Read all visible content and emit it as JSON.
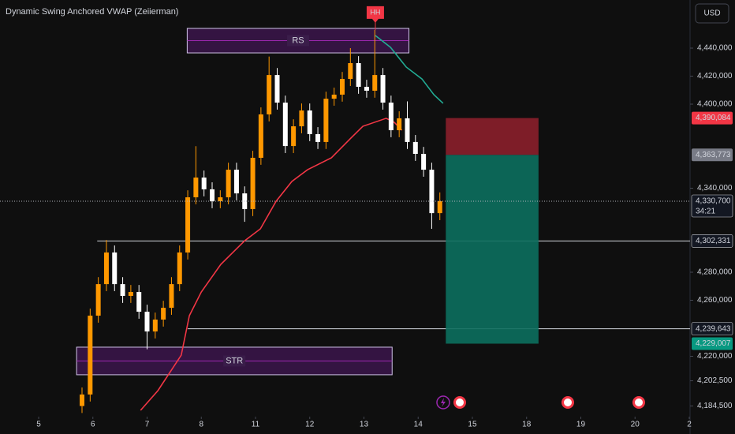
{
  "chart_data": {
    "type": "candlestick",
    "title": "Dynamic Swing Anchored VWAP (Zeiierman)",
    "currency": "USD",
    "up_color": "#ff9800",
    "down_color": "#ffffff",
    "x": [
      0.8,
      0.95,
      1.1,
      1.25,
      1.4,
      1.55,
      1.7,
      1.85,
      2.0,
      2.15,
      2.3,
      2.45,
      2.6,
      2.75,
      2.9,
      3.05,
      3.2,
      3.35,
      3.5,
      3.65,
      3.8,
      3.95,
      4.1,
      4.25,
      4.4,
      4.55,
      4.7,
      4.85,
      5.0,
      5.15,
      5.3,
      5.45,
      5.6,
      5.75,
      5.9,
      6.05,
      6.2,
      6.35,
      6.5,
      6.65,
      6.8,
      6.95,
      7.1,
      7.25,
      7.4
    ],
    "open": [
      4184500,
      4192700,
      4249000,
      4271500,
      4294100,
      4271500,
      4263100,
      4265900,
      4251800,
      4237700,
      4246200,
      4254600,
      4271500,
      4294100,
      4333500,
      4347600,
      4339200,
      4330700,
      4333500,
      4353200,
      4336300,
      4325100,
      4361700,
      4392700,
      4420800,
      4401100,
      4370100,
      4384200,
      4395500,
      4378600,
      4373000,
      4403900,
      4406800,
      4418000,
      4429300,
      4412400,
      4409600,
      4420800,
      4401100,
      4381400,
      4389900,
      4373000,
      4364500,
      4353200,
      4322200
    ],
    "high": [
      4197700,
      4254000,
      4276500,
      4303000,
      4299100,
      4276500,
      4270900,
      4270900,
      4256800,
      4251200,
      4259600,
      4276500,
      4299100,
      4338500,
      4370000,
      4352600,
      4344200,
      4338500,
      4358200,
      4358200,
      4341300,
      4366700,
      4397700,
      4434000,
      4425800,
      4406100,
      4389200,
      4400500,
      4400500,
      4383600,
      4408900,
      4411800,
      4423000,
      4440000,
      4434300,
      4417400,
      4453000,
      4425800,
      4406100,
      4394900,
      4402000,
      4378000,
      4369500,
      4358200,
      4337000
    ],
    "low": [
      4179500,
      4187700,
      4244000,
      4266500,
      4266500,
      4258100,
      4258100,
      4246800,
      4225000,
      4232700,
      4241200,
      4249600,
      4266500,
      4289100,
      4328500,
      4334200,
      4325700,
      4325700,
      4328500,
      4331300,
      4316000,
      4320100,
      4356700,
      4387700,
      4396100,
      4365100,
      4365100,
      4379200,
      4373600,
      4368000,
      4368000,
      4398900,
      4401800,
      4413000,
      4407400,
      4404600,
      4404600,
      4396100,
      4376400,
      4376400,
      4368000,
      4359500,
      4348200,
      4311000,
      4317200
    ],
    "close": [
      4192700,
      4249000,
      4271500,
      4294100,
      4271500,
      4263100,
      4265900,
      4251800,
      4237700,
      4246200,
      4254600,
      4271500,
      4294100,
      4333500,
      4347600,
      4339200,
      4330700,
      4333500,
      4353200,
      4336300,
      4325100,
      4361700,
      4392700,
      4420800,
      4401100,
      4370100,
      4384200,
      4395500,
      4378600,
      4373000,
      4403900,
      4406800,
      4418000,
      4429300,
      4412400,
      4409600,
      4420800,
      4401100,
      4381400,
      4389900,
      4373000,
      4364500,
      4353200,
      4322200,
      4330700
    ],
    "series": [
      {
        "color": "#f23645",
        "x": [
          1.88,
          2.2,
          2.63,
          2.78,
          3.0,
          3.36,
          3.8,
          4.09,
          4.38,
          4.67,
          4.96,
          5.4,
          5.76,
          5.98,
          6.41,
          6.56,
          6.7
        ],
        "values": [
          4181400,
          4195500,
          4220800,
          4249000,
          4265900,
          4285600,
          4302500,
          4311000,
          4330700,
          4344800,
          4353200,
          4361700,
          4375800,
          4384200,
          4389900,
          4387000,
          4381400
        ]
      },
      {
        "color": "#22ab94",
        "x": [
          6.21,
          6.49,
          6.78,
          7.07,
          7.29,
          7.46
        ],
        "values": [
          4449000,
          4440600,
          4426500,
          4418000,
          4406800,
          4400600
        ]
      }
    ],
    "boxes": [
      {
        "label": "RS",
        "x": [
          2.74,
          6.83
        ],
        "top": 4454100,
        "bottom": 4436600
      },
      {
        "label": "STR",
        "x": [
          0.7,
          6.52
        ],
        "top": 4226500,
        "bottom": 4206800
      }
    ],
    "levels": [
      {
        "value": 4302331,
        "start": 1.08
      },
      {
        "value": 4239643,
        "start": 2.75
      }
    ],
    "position": {
      "x": [
        7.51,
        9.22
      ],
      "entry": 4363773,
      "stop": 4390084,
      "target": 4229007
    },
    "marker": {
      "label": "HH",
      "x": 6.21,
      "value": 4453000,
      "color": "#f23645"
    },
    "price_labels": [
      {
        "value": 4390084,
        "label": "4,390,084",
        "color": "#f23645"
      },
      {
        "value": 4363773,
        "label": "4,363,773",
        "color": "#787b86"
      },
      {
        "value": 4330700,
        "label": "4,330,700",
        "color": "#131722",
        "line": "dotted"
      },
      {
        "value": 4302331,
        "label": "4,302,331",
        "color": "#131722"
      },
      {
        "value": 4239643,
        "label": "4,239,643",
        "color": "#131722"
      },
      {
        "value": 4229007,
        "label": "4,229,007",
        "color": "#089981"
      }
    ],
    "countdown": "34:21",
    "xlim": [
      -0.713,
      12.015
    ],
    "ylim": [
      4179150,
      4474370
    ],
    "xticks": [
      {
        "value": 0,
        "label": "5"
      },
      {
        "value": 1,
        "label": "6"
      },
      {
        "value": 2,
        "label": "7"
      },
      {
        "value": 3,
        "label": "8"
      },
      {
        "value": 4,
        "label": "11"
      },
      {
        "value": 5,
        "label": "12"
      },
      {
        "value": 6,
        "label": "13"
      },
      {
        "value": 7,
        "label": "14"
      },
      {
        "value": 8,
        "label": "15"
      },
      {
        "value": 9,
        "label": "18"
      },
      {
        "value": 10,
        "label": "19"
      },
      {
        "value": 11,
        "label": "20"
      },
      {
        "value": 12,
        "label": "2"
      }
    ],
    "yticks": [
      {
        "value": 4440000,
        "label": "4,440,000"
      },
      {
        "value": 4420000,
        "label": "4,420,000"
      },
      {
        "value": 4400000,
        "label": "4,400,000"
      },
      {
        "value": 4340000,
        "label": "4,340,000"
      },
      {
        "value": 4280000,
        "label": "4,280,000"
      },
      {
        "value": 4260000,
        "label": "4,260,000"
      },
      {
        "value": 4220000,
        "label": "4,220,000"
      },
      {
        "value": 4202500,
        "label": "4,202,500"
      },
      {
        "value": 4184500,
        "label": "4,184,500"
      }
    ],
    "grid": false
  }
}
